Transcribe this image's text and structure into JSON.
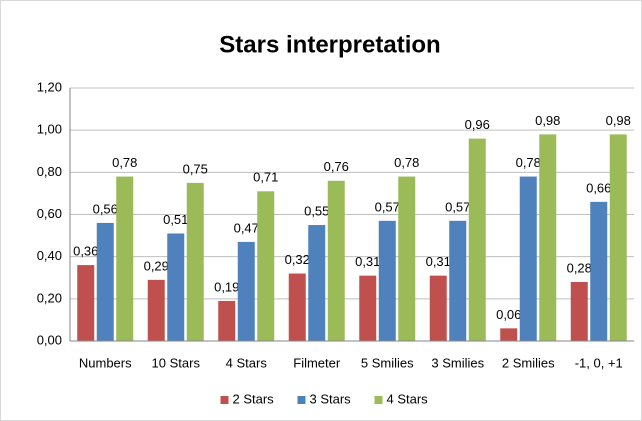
{
  "chart_data": {
    "type": "bar",
    "title": "Stars interpretation",
    "categories": [
      "Numbers",
      "10 Stars",
      "4 Stars",
      "Filmeter",
      "5 Smilies",
      "3 Smilies",
      "2 Smilies",
      "-1, 0, +1"
    ],
    "series": [
      {
        "name": "2 Stars",
        "color": "#c0504d",
        "values": [
          0.36,
          0.29,
          0.19,
          0.32,
          0.31,
          0.31,
          0.06,
          0.28
        ],
        "value_labels": [
          "0,36",
          "0,29",
          "0,19",
          "0,32",
          "0,31",
          "0,31",
          "0,06",
          "0,28"
        ]
      },
      {
        "name": "3 Stars",
        "color": "#4f81bd",
        "values": [
          0.56,
          0.51,
          0.47,
          0.55,
          0.57,
          0.57,
          0.78,
          0.66
        ],
        "value_labels": [
          "0,56",
          "0,51",
          "0,47",
          "0,55",
          "0,57",
          "0,57",
          "0,78",
          "0,66"
        ]
      },
      {
        "name": "4 Stars",
        "color": "#9bbb59",
        "values": [
          0.78,
          0.75,
          0.71,
          0.76,
          0.78,
          0.96,
          0.98,
          0.98
        ],
        "value_labels": [
          "0,78",
          "0,75",
          "0,71",
          "0,76",
          "0,78",
          "0,96",
          "0,98",
          "0,98"
        ]
      }
    ],
    "ylim": [
      0,
      1.2
    ],
    "yticks": [
      {
        "value": 0,
        "label": "0,00"
      },
      {
        "value": 0.2,
        "label": "0,20"
      },
      {
        "value": 0.4,
        "label": "0,40"
      },
      {
        "value": 0.6,
        "label": "0,60"
      },
      {
        "value": 0.8,
        "label": "0,80"
      },
      {
        "value": 1.0,
        "label": "1,00"
      },
      {
        "value": 1.2,
        "label": "1,20"
      }
    ],
    "grid": true,
    "legend": "bottom"
  }
}
